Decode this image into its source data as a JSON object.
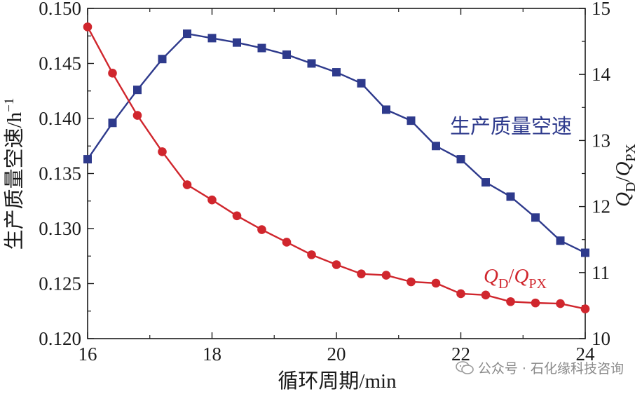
{
  "chart_data": {
    "type": "line",
    "x": [
      16,
      16.4,
      16.8,
      17.2,
      17.6,
      18,
      18.4,
      18.8,
      19.2,
      19.6,
      20,
      20.4,
      20.8,
      21.2,
      21.6,
      22,
      22.4,
      22.8,
      23.2,
      23.6,
      24
    ],
    "xlabel": "循环周期/min",
    "xlim": [
      16,
      24
    ],
    "xticks": [
      "16",
      "18",
      "20",
      "22",
      "24"
    ],
    "ylabel_left": "生产质量空速/h",
    "ylabel_left_sup": "−1",
    "ylim_left": [
      0.12,
      0.15
    ],
    "yticks_left": [
      "0.120",
      "0.125",
      "0.130",
      "0.135",
      "0.140",
      "0.145",
      "0.150"
    ],
    "ylabel_right_q1": "Q",
    "ylabel_right_sub1": "D",
    "ylabel_right_sep": "/",
    "ylabel_right_q2": "Q",
    "ylabel_right_sub2": "PX",
    "ylim_right": [
      10,
      15
    ],
    "yticks_right": [
      "10",
      "11",
      "12",
      "13",
      "14",
      "15"
    ],
    "grid": false,
    "series": [
      {
        "name": "生产质量空速",
        "axis": "left",
        "color": "#2e3a8c",
        "marker": "square",
        "values": [
          0.1363,
          0.1396,
          0.1426,
          0.1454,
          0.1477,
          0.1473,
          0.1469,
          0.1464,
          0.1458,
          0.145,
          0.1442,
          0.1432,
          0.1408,
          0.1398,
          0.1375,
          0.1363,
          0.1342,
          0.1329,
          0.131,
          0.1289,
          0.1278
        ]
      },
      {
        "name_parts": {
          "q1": "Q",
          "sub1": "D",
          "sep": "/",
          "q2": "Q",
          "sub2": "PX"
        },
        "axis": "right",
        "color": "#d0262d",
        "marker": "circle",
        "values": [
          14.72,
          14.02,
          13.38,
          12.83,
          12.33,
          12.1,
          11.86,
          11.65,
          11.46,
          11.27,
          11.12,
          10.98,
          10.96,
          10.86,
          10.84,
          10.68,
          10.66,
          10.56,
          10.54,
          10.53,
          10.45
        ]
      }
    ]
  },
  "watermark": {
    "text": "公众号 · 石化缘科技咨询",
    "icon": "wechat-icon"
  }
}
